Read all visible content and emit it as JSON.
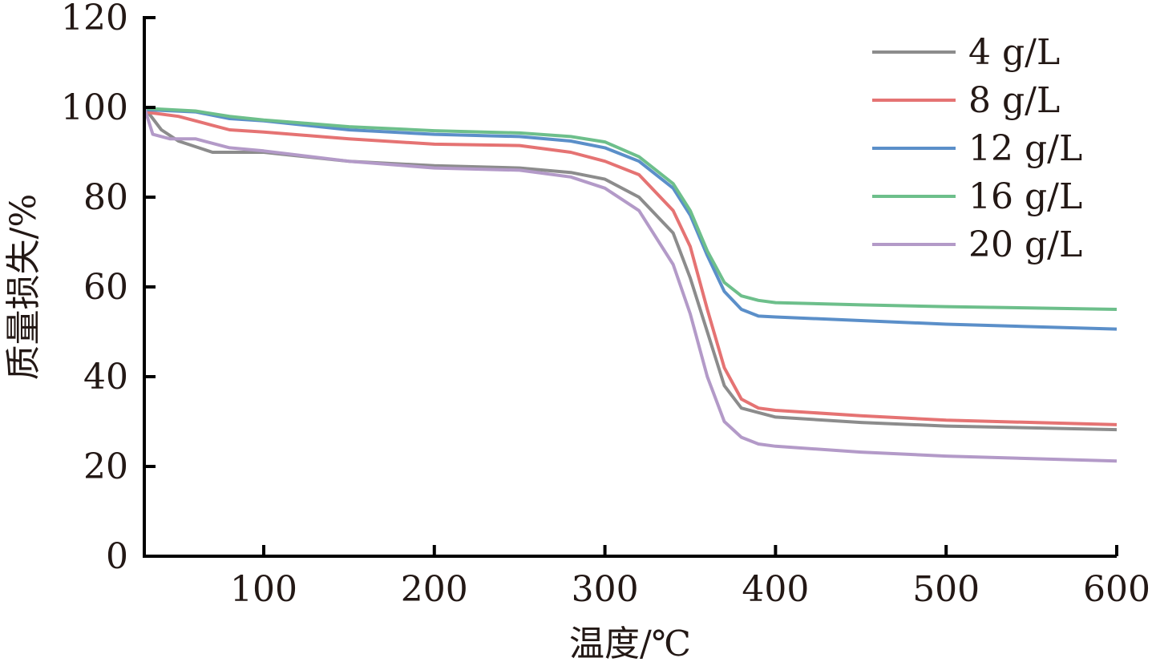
{
  "chart_data": {
    "type": "line",
    "title": "",
    "xlabel": "温度/℃",
    "ylabel": "质量损失/%",
    "xlim": [
      30,
      600
    ],
    "ylim": [
      0,
      120
    ],
    "xticks": [
      100,
      200,
      300,
      400,
      500,
      600
    ],
    "yticks": [
      0,
      20,
      40,
      60,
      80,
      100,
      120
    ],
    "grid": false,
    "legend_position": "top-right",
    "series": [
      {
        "name": "4 g/L",
        "color": "#8c8c8c",
        "x": [
          30,
          40,
          50,
          70,
          100,
          150,
          200,
          250,
          280,
          300,
          320,
          340,
          350,
          360,
          370,
          380,
          400,
          450,
          500,
          600
        ],
        "y": [
          100,
          95,
          92.5,
          90,
          90,
          88,
          87,
          86.5,
          85.5,
          84,
          80,
          72,
          62,
          50,
          38,
          33,
          31,
          29.8,
          29,
          28.2
        ]
      },
      {
        "name": "8 g/L",
        "color": "#e57373",
        "x": [
          30,
          50,
          70,
          80,
          100,
          150,
          200,
          250,
          280,
          300,
          320,
          340,
          350,
          360,
          370,
          380,
          390,
          400,
          450,
          500,
          600
        ],
        "y": [
          99,
          98,
          96,
          95,
          94.5,
          93,
          91.8,
          91.5,
          90,
          88,
          85,
          77,
          69,
          55,
          42,
          35,
          33,
          32.5,
          31.3,
          30.3,
          29.3
        ]
      },
      {
        "name": "12 g/L",
        "color": "#5b8fc9",
        "x": [
          30,
          60,
          80,
          100,
          150,
          200,
          250,
          280,
          300,
          320,
          340,
          350,
          360,
          370,
          380,
          390,
          400,
          450,
          500,
          600
        ],
        "y": [
          99.5,
          99,
          97.5,
          97,
          95,
          94,
          93.5,
          92.5,
          91,
          88,
          82,
          76,
          67,
          59,
          55,
          53.5,
          53.3,
          52.5,
          51.7,
          50.6
        ]
      },
      {
        "name": "16 g/L",
        "color": "#6dbf8b",
        "x": [
          30,
          60,
          80,
          100,
          150,
          200,
          250,
          280,
          300,
          320,
          340,
          350,
          360,
          370,
          380,
          390,
          400,
          450,
          500,
          600
        ],
        "y": [
          99.8,
          99.2,
          98,
          97.2,
          95.7,
          94.8,
          94.3,
          93.5,
          92.3,
          89,
          83,
          77,
          68,
          61,
          58,
          57,
          56.5,
          56,
          55.6,
          55
        ]
      },
      {
        "name": "20 g/L",
        "color": "#b39ac8",
        "x": [
          30,
          35,
          45,
          60,
          80,
          100,
          150,
          200,
          250,
          280,
          300,
          320,
          340,
          350,
          360,
          370,
          380,
          390,
          400,
          450,
          500,
          600
        ],
        "y": [
          100,
          94,
          93,
          93,
          91,
          90.3,
          88,
          86.5,
          86,
          84.5,
          82,
          77,
          65,
          54,
          40,
          30,
          26.5,
          25,
          24.5,
          23.2,
          22.3,
          21.2
        ]
      }
    ]
  }
}
